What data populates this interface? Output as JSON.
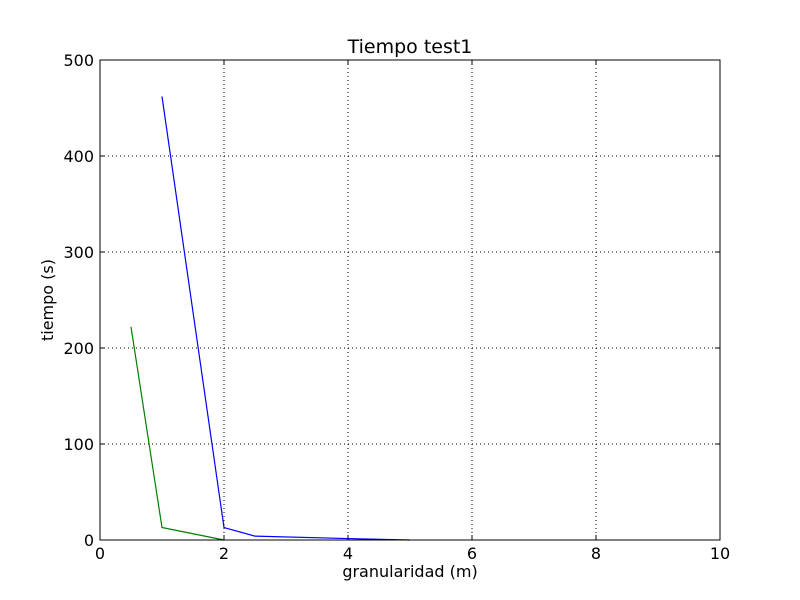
{
  "chart_data": {
    "type": "line",
    "title": "Tiempo test1",
    "xlabel": "granularidad (m)",
    "ylabel": "tiempo (s)",
    "xlim": [
      0,
      10
    ],
    "ylim": [
      0,
      500
    ],
    "grid": true,
    "x_ticks": [
      0,
      2,
      4,
      6,
      8,
      10
    ],
    "x_tick_labels": [
      "0",
      "2",
      "4",
      "6",
      "8",
      "10"
    ],
    "y_ticks": [
      0,
      100,
      200,
      300,
      400,
      500
    ],
    "y_tick_labels": [
      "0",
      "100",
      "200",
      "300",
      "400",
      "500"
    ],
    "series": [
      {
        "name": "series-blue",
        "color": "#0000ff",
        "x": [
          1,
          2,
          2.5,
          4,
          5
        ],
        "y": [
          462,
          13,
          4,
          1.5,
          0
        ]
      },
      {
        "name": "series-green",
        "color": "#008000",
        "x": [
          0.5,
          1,
          2
        ],
        "y": [
          222,
          13,
          0
        ]
      }
    ]
  }
}
